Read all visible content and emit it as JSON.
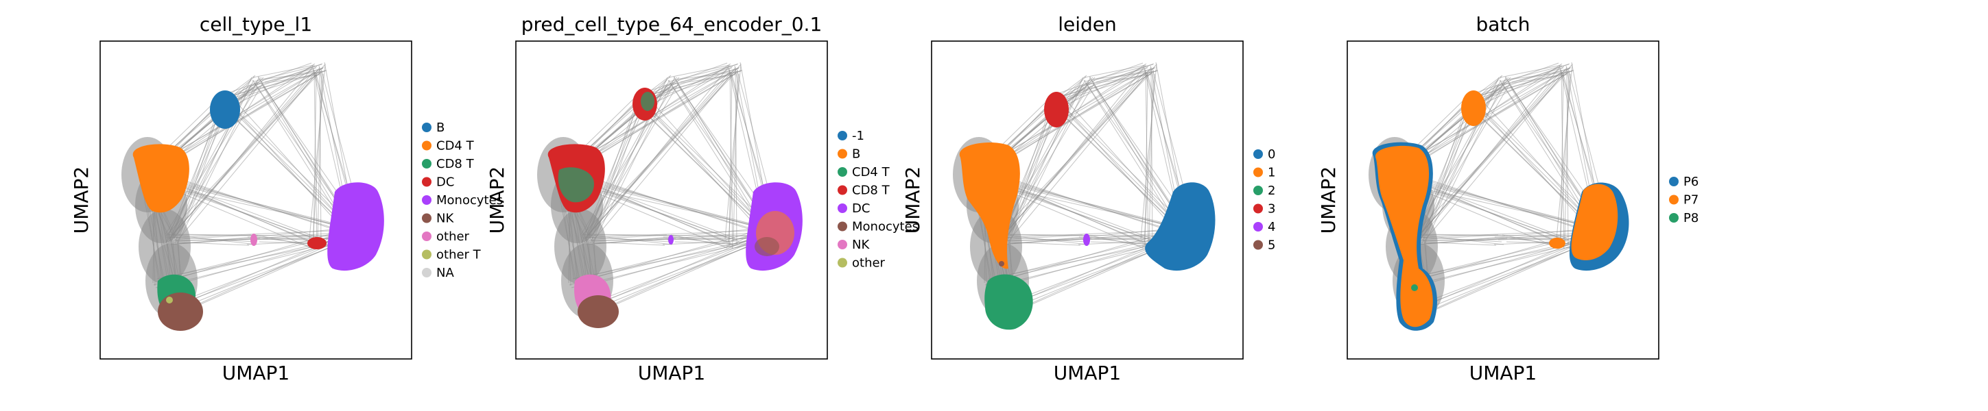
{
  "colors": {
    "edge": "#8a8a8a",
    "frame": "#000000",
    "tab_blue": "#1f77b4",
    "tab_orange": "#ff7f0e",
    "tab_green": "#279e68",
    "tab_red": "#d62728",
    "tab_purple": "#aa40fc",
    "tab_brown": "#8c564b",
    "tab_pink": "#e377c2",
    "tab_olive": "#b5bd61",
    "na_gray": "#d3d3d3"
  },
  "chart_data": [
    {
      "type": "scatter",
      "title": "cell_type_l1",
      "xlabel": "UMAP1",
      "ylabel": "UMAP2",
      "grid": false,
      "legend_placement": "right",
      "legend": [
        {
          "name": "B",
          "color": "#1f77b4"
        },
        {
          "name": "CD4 T",
          "color": "#ff7f0e"
        },
        {
          "name": "CD8 T",
          "color": "#279e68"
        },
        {
          "name": "DC",
          "color": "#d62728"
        },
        {
          "name": "Monocytes",
          "color": "#aa40fc"
        },
        {
          "name": "NK",
          "color": "#8c564b"
        },
        {
          "name": "other",
          "color": "#e377c2"
        },
        {
          "name": "other T",
          "color": "#b5bd61"
        },
        {
          "name": "NA",
          "color": "#d3d3d3"
        }
      ]
    },
    {
      "type": "scatter",
      "title": "pred_cell_type_64_encoder_0.1",
      "xlabel": "UMAP1",
      "ylabel": "UMAP2",
      "grid": false,
      "legend_placement": "right",
      "legend": [
        {
          "name": "-1",
          "color": "#1f77b4"
        },
        {
          "name": "B",
          "color": "#ff7f0e"
        },
        {
          "name": "CD4 T",
          "color": "#279e68"
        },
        {
          "name": "CD8 T",
          "color": "#d62728"
        },
        {
          "name": "DC",
          "color": "#aa40fc"
        },
        {
          "name": "Monocytes",
          "color": "#8c564b"
        },
        {
          "name": "NK",
          "color": "#e377c2"
        },
        {
          "name": "other",
          "color": "#b5bd61"
        }
      ]
    },
    {
      "type": "scatter",
      "title": "leiden",
      "xlabel": "UMAP1",
      "ylabel": "UMAP2",
      "grid": false,
      "legend_placement": "right",
      "legend": [
        {
          "name": "0",
          "color": "#1f77b4"
        },
        {
          "name": "1",
          "color": "#ff7f0e"
        },
        {
          "name": "2",
          "color": "#279e68"
        },
        {
          "name": "3",
          "color": "#d62728"
        },
        {
          "name": "4",
          "color": "#aa40fc"
        },
        {
          "name": "5",
          "color": "#8c564b"
        }
      ]
    },
    {
      "type": "scatter",
      "title": "batch",
      "xlabel": "UMAP1",
      "ylabel": "UMAP2",
      "grid": false,
      "legend_placement": "right",
      "legend": [
        {
          "name": "P6",
          "color": "#1f77b4"
        },
        {
          "name": "P7",
          "color": "#ff7f0e"
        },
        {
          "name": "P8",
          "color": "#279e68"
        }
      ]
    }
  ]
}
